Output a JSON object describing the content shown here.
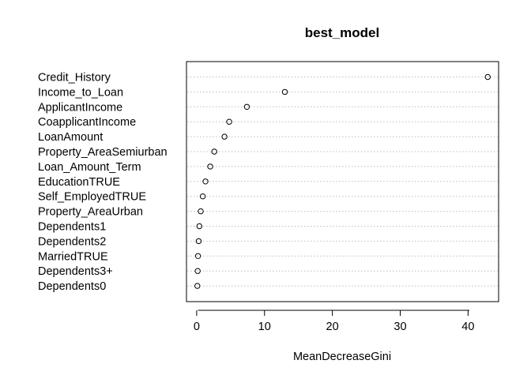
{
  "chart_data": {
    "type": "scatter",
    "title": "best_model",
    "xlabel": "MeanDecreaseGini",
    "ylabel": "",
    "xlim": [
      -1.5,
      44.5
    ],
    "xticks": [
      "0",
      "10",
      "20",
      "30",
      "40"
    ],
    "grid": "dotted-horizontal",
    "legend": "none",
    "colors": {
      "point": "#000000",
      "grid": "#bebebe",
      "frame": "#000000"
    },
    "categories": [
      "Credit_History",
      "Income_to_Loan",
      "ApplicantIncome",
      "CoapplicantIncome",
      "LoanAmount",
      "Property_AreaSemiurban",
      "Loan_Amount_Term",
      "EducationTRUE",
      "Self_EmployedTRUE",
      "Property_AreaUrban",
      "Dependents1",
      "Dependents2",
      "MarriedTRUE",
      "Dependents3+",
      "Dependents0"
    ],
    "values": [
      42.9,
      13.0,
      7.4,
      4.8,
      4.1,
      2.6,
      2.0,
      1.3,
      0.9,
      0.6,
      0.4,
      0.3,
      0.2,
      0.15,
      0.1
    ]
  }
}
